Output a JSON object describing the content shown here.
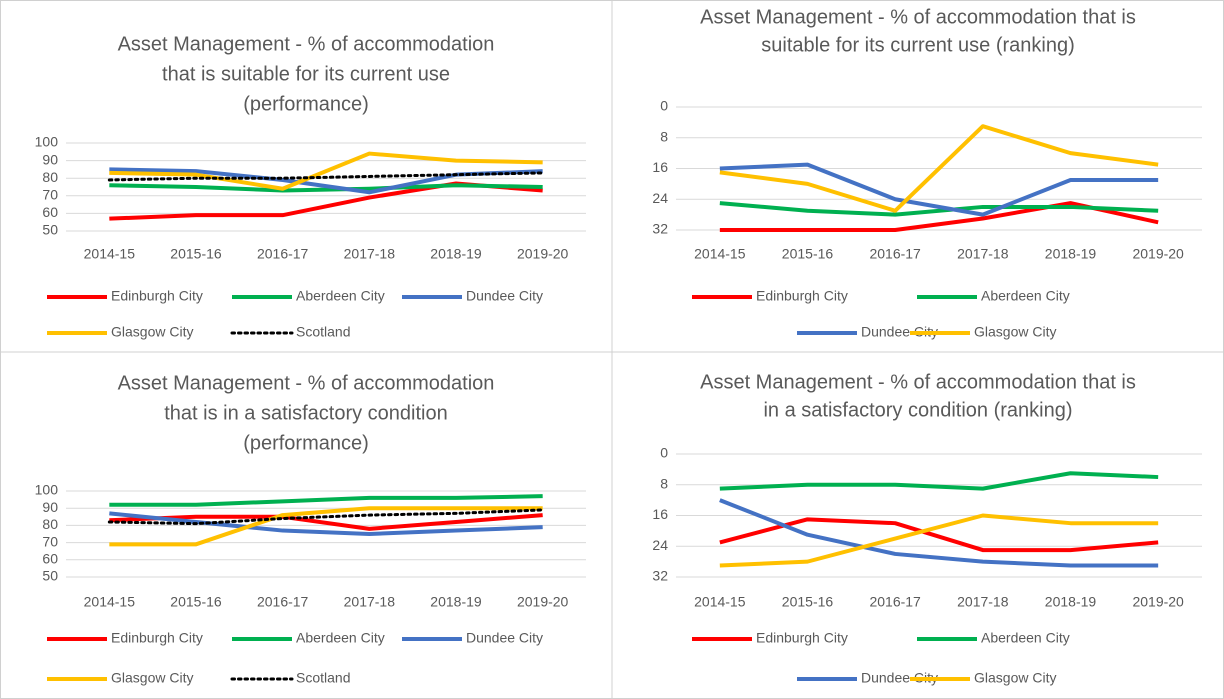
{
  "chart_data": [
    {
      "type": "line",
      "title": [
        "Asset Management - % of accommodation",
        "that is suitable for its current use",
        "(performance)"
      ],
      "categories": [
        "2014-15",
        "2015-16",
        "2016-17",
        "2017-18",
        "2018-19",
        "2019-20"
      ],
      "ylim": [
        50,
        100
      ],
      "yticks": [
        50,
        60,
        70,
        80,
        90,
        100
      ],
      "grid": true,
      "series": [
        {
          "name": "Edinburgh City",
          "color": "#ff0000",
          "values": [
            57,
            59,
            59,
            69,
            77,
            73
          ]
        },
        {
          "name": "Aberdeen City",
          "color": "#00b050",
          "values": [
            76,
            75,
            73,
            74,
            76,
            75
          ]
        },
        {
          "name": "Dundee City",
          "color": "#4472c4",
          "values": [
            85,
            84,
            79,
            72,
            82,
            84
          ]
        },
        {
          "name": "Glasgow City",
          "color": "#ffc000",
          "values": [
            83,
            82,
            74,
            94,
            90,
            89
          ]
        },
        {
          "name": "Scotland",
          "color": "#000000",
          "style": "dotted",
          "values": [
            79,
            80,
            80,
            81,
            82,
            83
          ]
        }
      ]
    },
    {
      "type": "line",
      "title": [
        "Asset Management - % of accommodation that is",
        "suitable for its current use (ranking)"
      ],
      "categories": [
        "2014-15",
        "2015-16",
        "2016-17",
        "2017-18",
        "2018-19",
        "2019-20"
      ],
      "ylim": [
        32,
        0
      ],
      "yticks": [
        0,
        8,
        16,
        24,
        32
      ],
      "grid": true,
      "series": [
        {
          "name": "Edinburgh City",
          "color": "#ff0000",
          "values": [
            32,
            32,
            32,
            29,
            25,
            30
          ]
        },
        {
          "name": "Aberdeen City",
          "color": "#00b050",
          "values": [
            25,
            27,
            28,
            26,
            26,
            27
          ]
        },
        {
          "name": "Dundee City",
          "color": "#4472c4",
          "values": [
            16,
            15,
            24,
            28,
            19,
            19
          ]
        },
        {
          "name": "Glasgow City",
          "color": "#ffc000",
          "values": [
            17,
            20,
            27,
            5,
            12,
            15
          ]
        }
      ]
    },
    {
      "type": "line",
      "title": [
        "Asset Management - % of accommodation",
        "that is in a satisfactory condition",
        "(performance)"
      ],
      "categories": [
        "2014-15",
        "2015-16",
        "2016-17",
        "2017-18",
        "2018-19",
        "2019-20"
      ],
      "ylim": [
        50,
        100
      ],
      "yticks": [
        50,
        60,
        70,
        80,
        90,
        100
      ],
      "grid": true,
      "series": [
        {
          "name": "Edinburgh City",
          "color": "#ff0000",
          "values": [
            83,
            85,
            85,
            78,
            82,
            86
          ]
        },
        {
          "name": "Aberdeen City",
          "color": "#00b050",
          "values": [
            92,
            92,
            94,
            96,
            96,
            97
          ]
        },
        {
          "name": "Dundee City",
          "color": "#4472c4",
          "values": [
            87,
            82,
            77,
            75,
            77,
            79
          ]
        },
        {
          "name": "Glasgow City",
          "color": "#ffc000",
          "values": [
            69,
            69,
            86,
            90,
            90,
            90
          ]
        },
        {
          "name": "Scotland",
          "color": "#000000",
          "style": "dotted",
          "values": [
            82,
            81,
            84,
            86,
            87,
            89
          ]
        }
      ]
    },
    {
      "type": "line",
      "title": [
        "Asset Management - % of accommodation that is",
        "in a satisfactory condition (ranking)"
      ],
      "categories": [
        "2014-15",
        "2015-16",
        "2016-17",
        "2017-18",
        "2018-19",
        "2019-20"
      ],
      "ylim": [
        32,
        0
      ],
      "yticks": [
        0,
        8,
        16,
        24,
        32
      ],
      "grid": true,
      "series": [
        {
          "name": "Edinburgh City",
          "color": "#ff0000",
          "values": [
            23,
            17,
            18,
            25,
            25,
            23
          ]
        },
        {
          "name": "Aberdeen City",
          "color": "#00b050",
          "values": [
            9,
            8,
            8,
            9,
            5,
            6
          ]
        },
        {
          "name": "Dundee City",
          "color": "#4472c4",
          "values": [
            12,
            21,
            26,
            28,
            29,
            29
          ]
        },
        {
          "name": "Glasgow City",
          "color": "#ffc000",
          "values": [
            29,
            28,
            22,
            16,
            18,
            18
          ]
        }
      ]
    }
  ]
}
